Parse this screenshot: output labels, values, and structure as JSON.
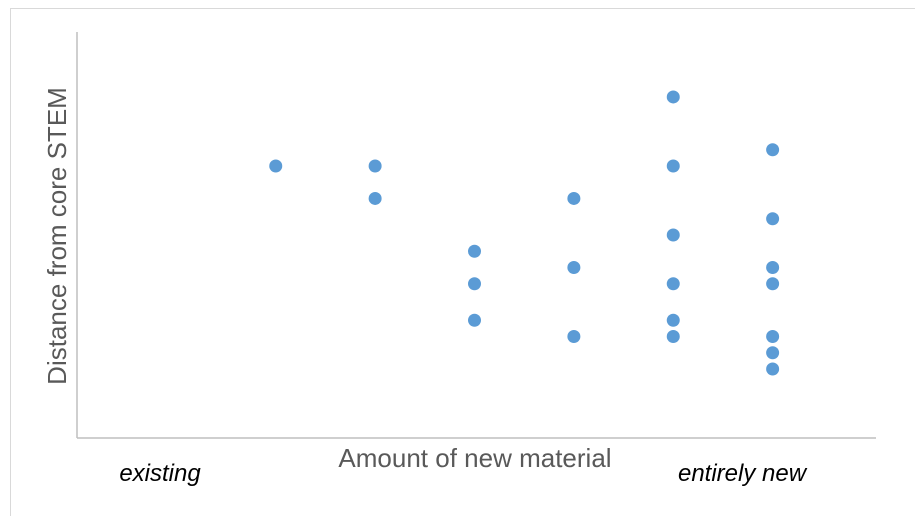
{
  "chart_data": {
    "type": "scatter",
    "title": "",
    "xlabel": "Amount of new material",
    "ylabel": "Distance from core STEM",
    "x_endpoints": {
      "left": "existing",
      "right": "entirely new"
    },
    "xlim": [
      0,
      8
    ],
    "ylim": [
      0,
      10
    ],
    "grid": false,
    "series": [
      {
        "color": "#5b9bd5",
        "points": [
          {
            "x": 2,
            "y": 6.7
          },
          {
            "x": 3,
            "y": 6.7
          },
          {
            "x": 3,
            "y": 5.9
          },
          {
            "x": 4,
            "y": 4.6
          },
          {
            "x": 4,
            "y": 3.8
          },
          {
            "x": 4,
            "y": 2.9
          },
          {
            "x": 5,
            "y": 5.9
          },
          {
            "x": 5,
            "y": 4.2
          },
          {
            "x": 5,
            "y": 2.5
          },
          {
            "x": 6,
            "y": 8.4
          },
          {
            "x": 6,
            "y": 6.7
          },
          {
            "x": 6,
            "y": 5.0
          },
          {
            "x": 6,
            "y": 3.8
          },
          {
            "x": 6,
            "y": 2.9
          },
          {
            "x": 6,
            "y": 2.5
          },
          {
            "x": 7,
            "y": 7.1
          },
          {
            "x": 7,
            "y": 5.4
          },
          {
            "x": 7,
            "y": 4.2
          },
          {
            "x": 7,
            "y": 3.8
          },
          {
            "x": 7,
            "y": 2.5
          },
          {
            "x": 7,
            "y": 2.1
          },
          {
            "x": 7,
            "y": 1.7
          }
        ]
      }
    ]
  }
}
